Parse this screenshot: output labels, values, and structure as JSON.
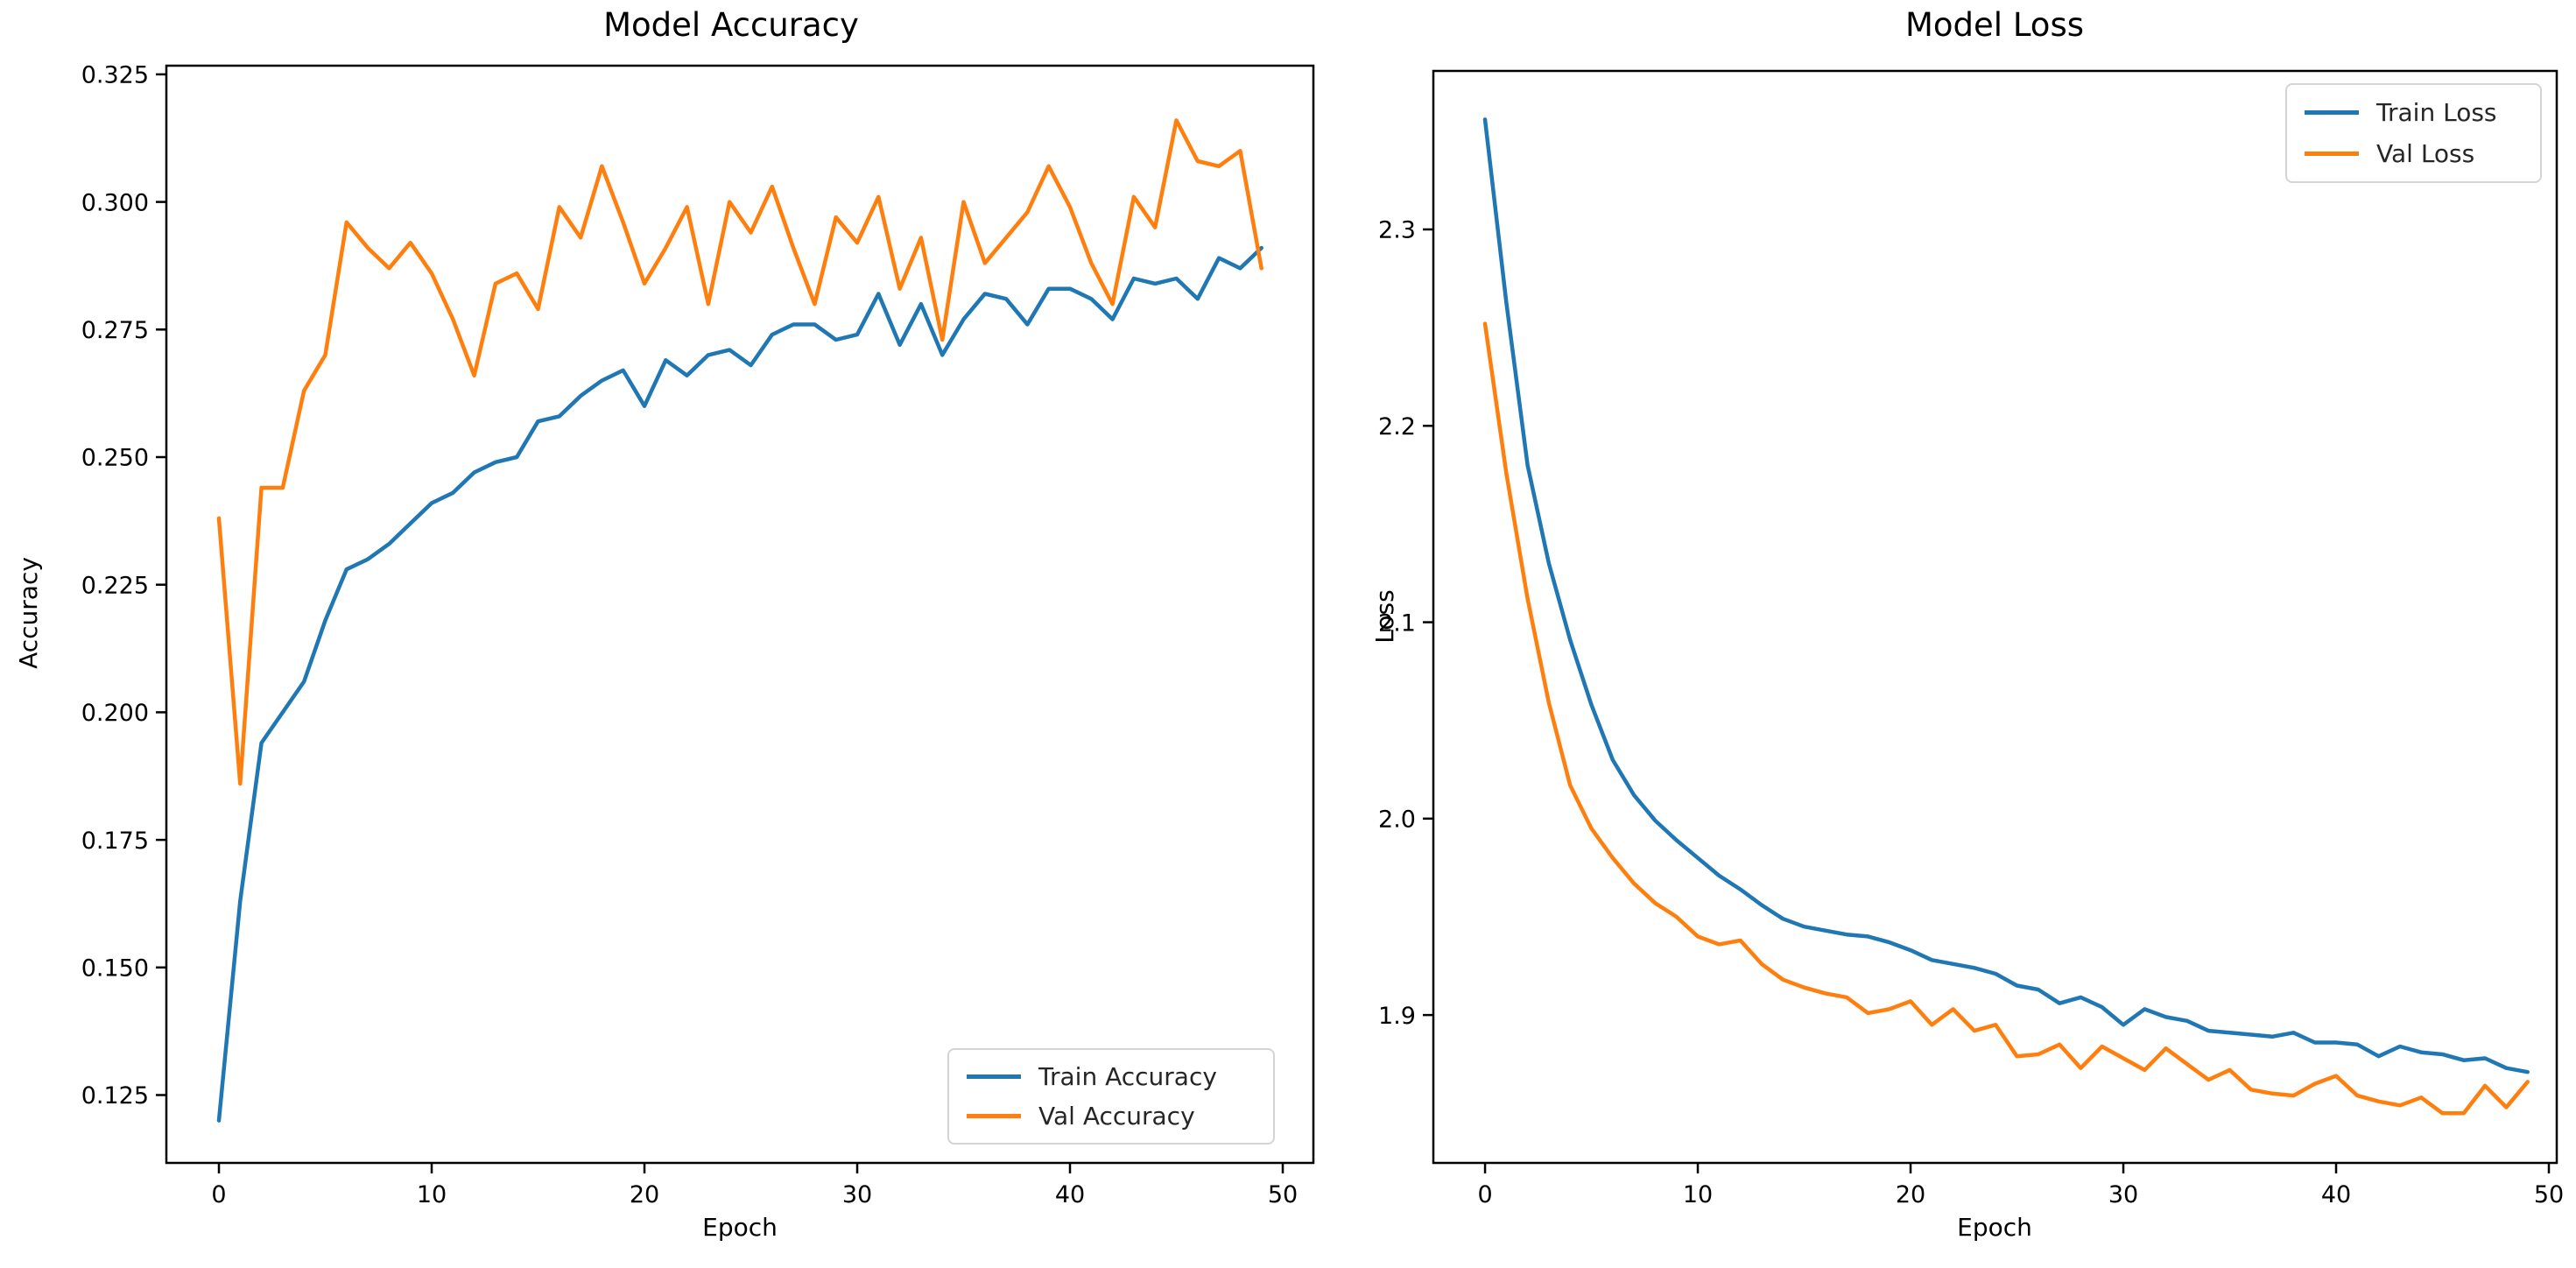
{
  "figure": {
    "background": "#ffffff"
  },
  "colors": {
    "train": "#1f77b4",
    "val": "#ff7f0e",
    "axis": "#000000",
    "text": "#000000",
    "legend_border": "#d4d4d4"
  },
  "chart_data": [
    {
      "type": "line",
      "title": "Model Accuracy",
      "xlabel": "Epoch",
      "ylabel": "Accuracy",
      "grid": false,
      "legend_position": "lower right",
      "xlim": [
        -2.47,
        51.44
      ],
      "ylim": [
        0.1117,
        0.3267
      ],
      "xticks": [
        0,
        10,
        20,
        30,
        40,
        50
      ],
      "xtick_labels": [
        "0",
        "10",
        "20",
        "30",
        "40",
        "50"
      ],
      "yticks": [
        0.125,
        0.15,
        0.175,
        0.2,
        0.225,
        0.25,
        0.275,
        0.3,
        0.325
      ],
      "ytick_labels": [
        "0.125",
        "0.150",
        "0.175",
        "0.200",
        "0.225",
        "0.250",
        "0.275",
        "0.300",
        "0.325"
      ],
      "x": [
        0,
        1,
        2,
        3,
        4,
        5,
        6,
        7,
        8,
        9,
        10,
        11,
        12,
        13,
        14,
        15,
        16,
        17,
        18,
        19,
        20,
        21,
        22,
        23,
        24,
        25,
        26,
        27,
        28,
        29,
        30,
        31,
        32,
        33,
        34,
        35,
        36,
        37,
        38,
        39,
        40,
        41,
        42,
        43,
        44,
        45,
        46,
        47,
        48,
        49
      ],
      "series": [
        {
          "name": "Train Accuracy",
          "color": "#1f77b4",
          "values": [
            0.12,
            0.163,
            0.194,
            0.2,
            0.206,
            0.218,
            0.228,
            0.23,
            0.233,
            0.237,
            0.241,
            0.243,
            0.247,
            0.249,
            0.25,
            0.257,
            0.258,
            0.262,
            0.265,
            0.267,
            0.26,
            0.269,
            0.266,
            0.27,
            0.271,
            0.268,
            0.274,
            0.276,
            0.276,
            0.273,
            0.274,
            0.282,
            0.272,
            0.28,
            0.27,
            0.277,
            0.282,
            0.281,
            0.276,
            0.283,
            0.283,
            0.281,
            0.277,
            0.285,
            0.284,
            0.285,
            0.281,
            0.289,
            0.287,
            0.291
          ]
        },
        {
          "name": "Val Accuracy",
          "color": "#ff7f0e",
          "values": [
            0.238,
            0.186,
            0.244,
            0.244,
            0.263,
            0.27,
            0.296,
            0.291,
            0.287,
            0.292,
            0.286,
            0.277,
            0.266,
            0.284,
            0.286,
            0.279,
            0.299,
            0.293,
            0.307,
            0.296,
            0.284,
            0.291,
            0.299,
            0.28,
            0.3,
            0.294,
            0.303,
            0.291,
            0.28,
            0.297,
            0.292,
            0.301,
            0.283,
            0.293,
            0.273,
            0.3,
            0.288,
            0.293,
            0.298,
            0.307,
            0.299,
            0.288,
            0.28,
            0.301,
            0.295,
            0.316,
            0.308,
            0.307,
            0.31,
            0.287
          ]
        }
      ]
    },
    {
      "type": "line",
      "title": "Model Loss",
      "xlabel": "Epoch",
      "ylabel": "Loss",
      "grid": false,
      "legend_position": "upper right",
      "xlim": [
        -2.43,
        50.37
      ],
      "ylim": [
        1.8247,
        2.3807
      ],
      "xticks": [
        0,
        10,
        20,
        30,
        40,
        50
      ],
      "xtick_labels": [
        "0",
        "10",
        "20",
        "30",
        "40",
        "50"
      ],
      "yticks": [
        1.9,
        2.0,
        2.1,
        2.2,
        2.3
      ],
      "ytick_labels": [
        "1.9",
        "2.0",
        "2.1",
        "2.2",
        "2.3"
      ],
      "x": [
        0,
        1,
        2,
        3,
        4,
        5,
        6,
        7,
        8,
        9,
        10,
        11,
        12,
        13,
        14,
        15,
        16,
        17,
        18,
        19,
        20,
        21,
        22,
        23,
        24,
        25,
        26,
        27,
        28,
        29,
        30,
        31,
        32,
        33,
        34,
        35,
        36,
        37,
        38,
        39,
        40,
        41,
        42,
        43,
        44,
        45,
        46,
        47,
        48,
        49
      ],
      "series": [
        {
          "name": "Train Loss",
          "color": "#1f77b4",
          "values": [
            2.356,
            2.263,
            2.18,
            2.13,
            2.091,
            2.058,
            2.03,
            2.012,
            1.999,
            1.989,
            1.98,
            1.971,
            1.964,
            1.956,
            1.949,
            1.945,
            1.943,
            1.941,
            1.94,
            1.937,
            1.933,
            1.928,
            1.926,
            1.924,
            1.921,
            1.915,
            1.913,
            1.906,
            1.909,
            1.904,
            1.895,
            1.903,
            1.899,
            1.897,
            1.892,
            1.891,
            1.89,
            1.889,
            1.891,
            1.886,
            1.886,
            1.885,
            1.879,
            1.884,
            1.881,
            1.88,
            1.877,
            1.878,
            1.873,
            1.871
          ]
        },
        {
          "name": "Val Loss",
          "color": "#ff7f0e",
          "values": [
            2.252,
            2.176,
            2.112,
            2.059,
            2.017,
            1.995,
            1.98,
            1.967,
            1.957,
            1.95,
            1.94,
            1.936,
            1.938,
            1.926,
            1.918,
            1.914,
            1.911,
            1.909,
            1.901,
            1.903,
            1.907,
            1.895,
            1.903,
            1.892,
            1.895,
            1.879,
            1.88,
            1.885,
            1.873,
            1.884,
            1.878,
            1.872,
            1.883,
            1.875,
            1.867,
            1.872,
            1.862,
            1.86,
            1.859,
            1.865,
            1.869,
            1.859,
            1.856,
            1.854,
            1.858,
            1.85,
            1.85,
            1.864,
            1.853,
            1.866
          ]
        }
      ]
    }
  ]
}
